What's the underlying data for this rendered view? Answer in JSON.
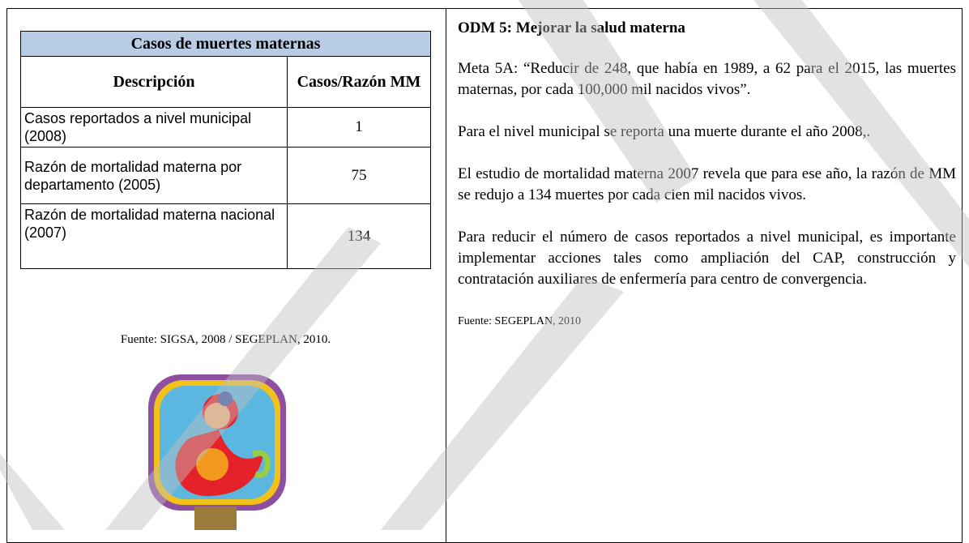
{
  "table": {
    "title": "Casos de muertes maternas",
    "headers": [
      "Descripción",
      "Casos/Razón MM"
    ],
    "rows": [
      [
        "Casos reportados a nivel municipal (2008)",
        1
      ],
      [
        "Razón de mortalidad materna por departamento (2005)",
        75
      ],
      [
        "Razón de mortalidad materna  nacional (2007)",
        134
      ]
    ],
    "source": "Fuente: SIGSA, 2008 / SEGEPLAN, 2010."
  },
  "section": {
    "heading": "ODM 5: Mejorar la salud materna",
    "paragraphs": [
      "Meta 5A: “Reducir de 248, que había en 1989, a 62 para el 2015, las muertes maternas, por cada 100,000 mil nacidos vivos”.",
      "Para el nivel municipal  se reporta una  muerte durante el año 2008,.",
      "El estudio de mortalidad materna 2007 revela que para ese año, la razón de MM se redujo a 134 muertes por cada cien mil nacidos vivos.",
      "Para reducir el número de casos reportados a nivel municipal, es importante implementar acciones tales como ampliación del CAP, construcción y contratación auxiliares de enfermería para centro de convergencia."
    ],
    "source": "Fuente: SEGEPLAN, 2010"
  }
}
